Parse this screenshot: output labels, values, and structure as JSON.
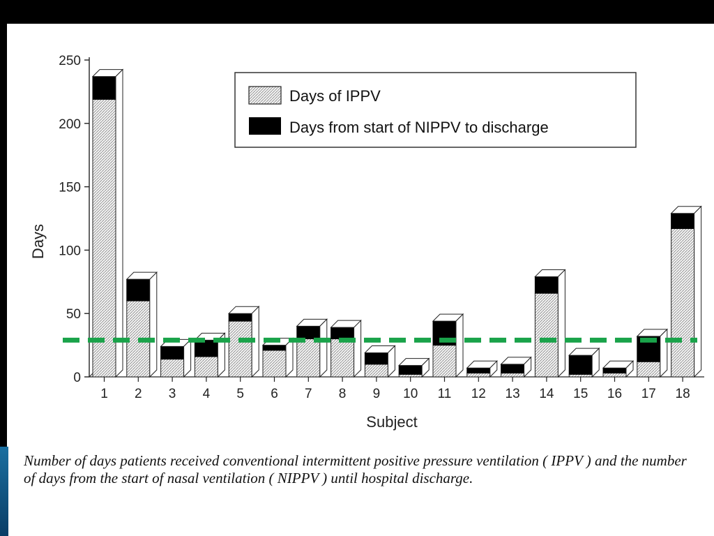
{
  "chart_data": {
    "type": "bar",
    "stacked": true,
    "xlabel": "Subject",
    "ylabel": "Days",
    "ylim": [
      0,
      250
    ],
    "yticks": [
      0,
      50,
      100,
      150,
      200,
      250
    ],
    "categories": [
      "1",
      "2",
      "3",
      "4",
      "5",
      "6",
      "7",
      "8",
      "9",
      "10",
      "11",
      "12",
      "13",
      "14",
      "15",
      "16",
      "17",
      "18"
    ],
    "series": [
      {
        "name": "Days of IPPV",
        "pattern": "hatched-gray",
        "values": [
          219,
          60,
          14,
          16,
          44,
          21,
          30,
          30,
          10,
          2,
          25,
          3,
          3,
          66,
          2,
          3,
          12,
          117
        ]
      },
      {
        "name": "Days from start of NIPPV to discharge",
        "color": "#000000",
        "values": [
          18,
          17,
          10,
          13,
          6,
          4,
          10,
          9,
          9,
          7,
          19,
          4,
          7,
          13,
          15,
          4,
          20,
          12
        ]
      }
    ],
    "reference_line": {
      "value": 29,
      "color": "#1aa34a",
      "style": "dashed"
    },
    "legend_position": "top-right",
    "grid": false
  },
  "caption": "Number of days patients received conventional intermittent positive pressure ventilation ( IPPV ) and the number of days from the start of nasal ventilation ( NIPPV ) until hospital discharge."
}
